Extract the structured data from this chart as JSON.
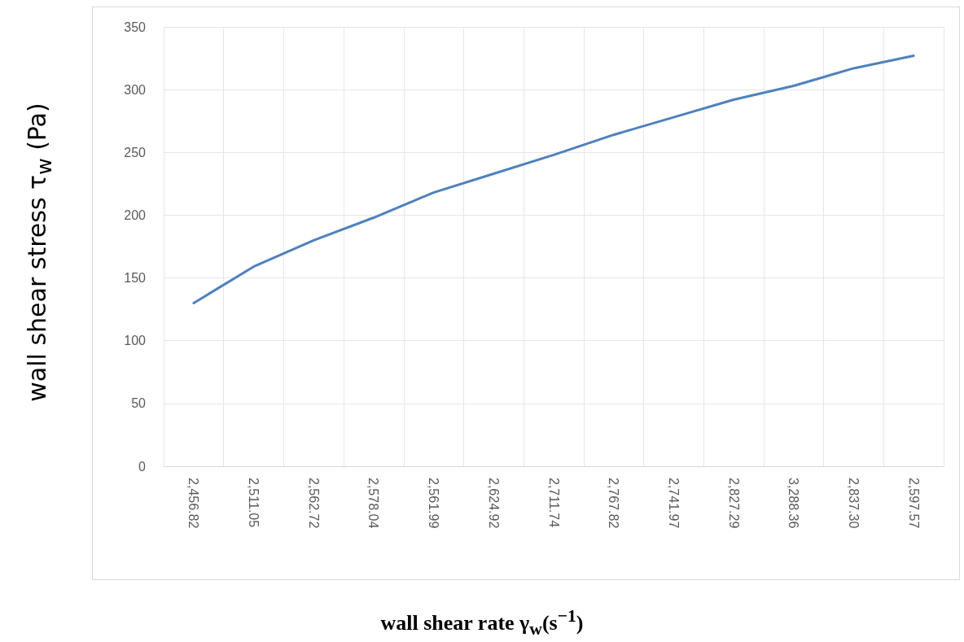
{
  "chart_data": {
    "type": "line",
    "xlabel": "wall shear rate γ$_{w}$(s$^{−1}$)",
    "ylabel": "wall shear stress τ$_{w}$ (Pa)",
    "categories": [
      "2,456.82",
      "2,511.05",
      "2,562.72",
      "2,578.04",
      "2,561.99",
      "2,624.92",
      "2,711.74",
      "2,767.82",
      "2,741.97",
      "2,827.29",
      "3,288.36",
      "2,837.30",
      "2,597.57"
    ],
    "series": [
      {
        "color": "#4f81bd",
        "values": [
          130,
          159,
          180,
          198,
          218,
          233,
          248,
          264,
          278,
          292,
          303,
          317,
          327
        ]
      }
    ],
    "ylim": [
      0,
      350
    ],
    "yticks": [
      0,
      50,
      100,
      150,
      200,
      250,
      300,
      350
    ],
    "grid": true,
    "marker": "none",
    "line_style": "solid"
  }
}
